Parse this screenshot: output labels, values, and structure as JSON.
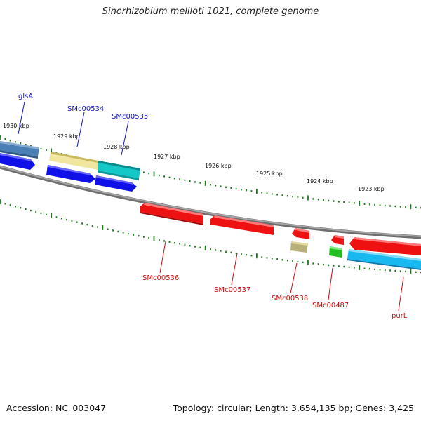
{
  "title": "Sinorhizobium meliloti 1021, complete genome",
  "footer": {
    "accession": "Accession: NC_003047",
    "summary": "Topology: circular; Length: 3,654,135 bp; Genes: 3,425"
  },
  "colors": {
    "backbone": "#808080",
    "tick": "#1f7a1f",
    "top_label": "#1515c8",
    "bottom_label": "#c81010",
    "gene_red": "#ee1111",
    "gene_blue": "#1111ee",
    "gene_steel": "#4a7fb5",
    "gene_khaki": "#f0e6a0",
    "gene_teal": "#14c8c8",
    "gene_olive": "#b8b078",
    "gene_green": "#22c022",
    "gene_sky": "#18b8f0"
  },
  "ruler_labels": [
    "1930 kbp",
    "1929 kbp",
    "1928 kbp",
    "1927 kbp",
    "1926 kbp",
    "1925 kbp",
    "1924 kbp",
    "1923 kbp"
  ],
  "top_genes": [
    {
      "label": "glsA",
      "icon": "gene-arrow"
    },
    {
      "label": "SMc00534",
      "icon": "gene-arrow"
    },
    {
      "label": "SMc00535",
      "icon": "gene-arrow"
    }
  ],
  "bottom_genes": [
    {
      "label": "SMc00536",
      "icon": "gene-arrow"
    },
    {
      "label": "SMc00537",
      "icon": "gene-arrow"
    },
    {
      "label": "SMc00538",
      "icon": "gene-arrow"
    },
    {
      "label": "SMc00487",
      "icon": "gene-arrow"
    },
    {
      "label": "purL",
      "icon": "gene-arrow"
    }
  ]
}
